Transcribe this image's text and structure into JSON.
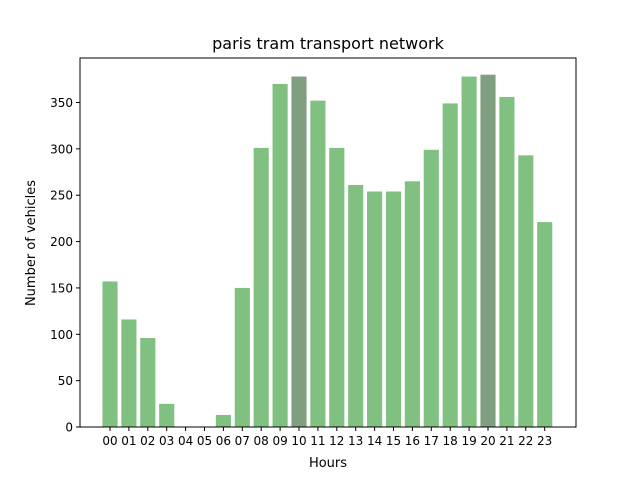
{
  "chart_data": {
    "type": "bar",
    "title": "paris tram transport network",
    "xlabel": "Hours",
    "ylabel": "Number of vehicles",
    "categories": [
      "00",
      "01",
      "02",
      "03",
      "04",
      "05",
      "06",
      "07",
      "08",
      "09",
      "10",
      "11",
      "12",
      "13",
      "14",
      "15",
      "16",
      "17",
      "18",
      "19",
      "20",
      "21",
      "22",
      "23"
    ],
    "values": [
      157,
      116,
      96,
      25,
      0,
      0,
      13,
      150,
      301,
      370,
      378,
      352,
      301,
      261,
      254,
      254,
      265,
      299,
      349,
      378,
      380,
      356,
      293,
      221
    ],
    "highlighted": [
      "10",
      "20"
    ],
    "ylim": [
      0,
      398
    ],
    "yticks": [
      0,
      50,
      100,
      150,
      200,
      250,
      300,
      350
    ],
    "grid": false,
    "legend": "none",
    "colors": {
      "bar": "#80c080",
      "highlight": "#809e80",
      "axis": "#000000"
    }
  }
}
